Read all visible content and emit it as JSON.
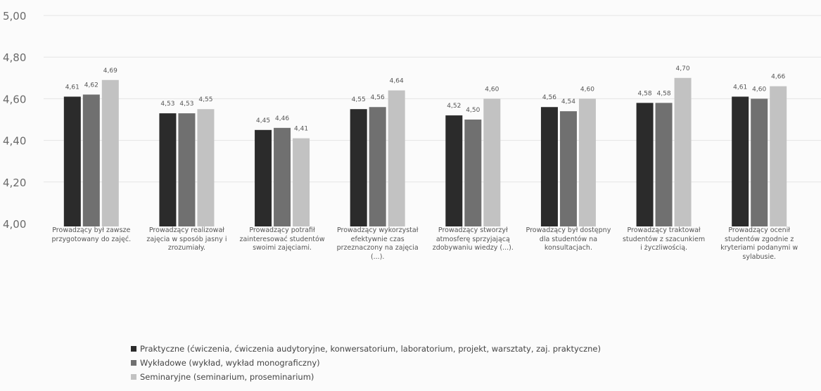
{
  "chart_data": {
    "type": "bar",
    "ylim": [
      4.0,
      5.0
    ],
    "yticks": [
      "4,00",
      "4,20",
      "4,40",
      "4,60",
      "4,80",
      "5,00"
    ],
    "grid": true,
    "legend_position": "bottom",
    "categories": [
      "Prowadzący był zawsze przygotowany do zajęć.",
      "Prowadzący realizował zajęcia w sposób jasny i zrozumiały.",
      "Prowadzący potrafił zainteresować studentów swoimi zajęciami.",
      "Prowadzący wykorzystał efektywnie czas przeznaczony na zajęcia (...).",
      "Prowadzący stworzył atmosferę sprzyjającą zdobywaniu wiedzy (...).",
      "Prowadzący był dostępny dla studentów na konsultacjach.",
      "Prowadzący traktował studentów z szacunkiem i życzliwością.",
      "Prowadzący ocenił studentów zgodnie z kryteriami podanymi w sylabusie."
    ],
    "series": [
      {
        "name": "Praktyczne (ćwiczenia, ćwiczenia audytoryjne, konwersatorium, laboratorium, projekt, warsztaty, zaj. praktyczne)",
        "color": "#2b2b2b",
        "values": [
          4.61,
          4.53,
          4.45,
          4.55,
          4.52,
          4.56,
          4.58,
          4.61
        ],
        "labels": [
          "4,61",
          "4,53",
          "4,45",
          "4,55",
          "4,52",
          "4,56",
          "4,58",
          "4,61"
        ]
      },
      {
        "name": "Wykładowe (wykład, wykład monograficzny)",
        "color": "#707070",
        "values": [
          4.62,
          4.53,
          4.46,
          4.56,
          4.5,
          4.54,
          4.58,
          4.6
        ],
        "labels": [
          "4,62",
          "4,53",
          "4,46",
          "4,56",
          "4,50",
          "4,54",
          "4,58",
          "4,60"
        ]
      },
      {
        "name": "Seminaryjne (seminarium, proseminarium)",
        "color": "#c2c2c2",
        "values": [
          4.69,
          4.55,
          4.41,
          4.64,
          4.6,
          4.6,
          4.7,
          4.66
        ],
        "labels": [
          "4,69",
          "4,55",
          "4,41",
          "4,64",
          "4,60",
          "4,60",
          "4,70",
          "4,66"
        ]
      }
    ]
  }
}
